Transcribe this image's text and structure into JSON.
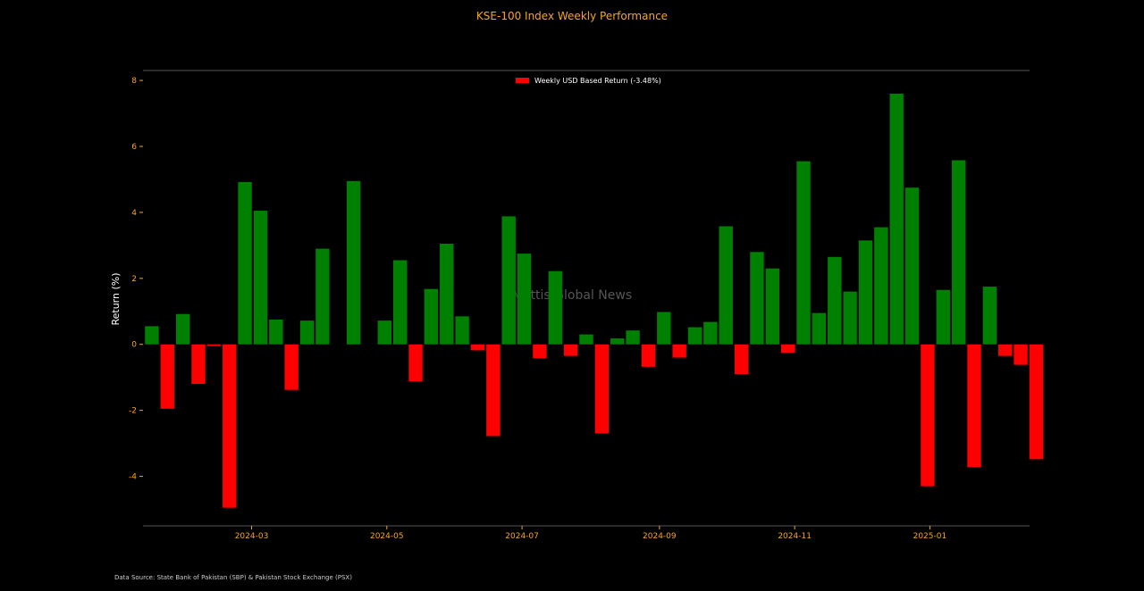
{
  "chart_data": {
    "type": "bar",
    "title": "KSE-100 Index Weekly Performance",
    "ylabel": "Return (%)",
    "ylim": [
      -5.5,
      8.3
    ],
    "yticks": [
      -4,
      -2,
      0,
      2,
      4,
      6,
      8
    ],
    "x_range": [
      "2024-01-12",
      "2025-02-15"
    ],
    "xticks": [
      {
        "date": "2024-03-01",
        "label": "2024-03"
      },
      {
        "date": "2024-05-01",
        "label": "2024-05"
      },
      {
        "date": "2024-07-01",
        "label": "2024-07"
      },
      {
        "date": "2024-09-01",
        "label": "2024-09"
      },
      {
        "date": "2024-11-01",
        "label": "2024-11"
      },
      {
        "date": "2025-01-01",
        "label": "2025-01"
      }
    ],
    "positive_color": "#008000",
    "negative_color": "#ff0000",
    "legend": {
      "label": "Weekly USD Based Return (-3.48%)",
      "color": "#ff0000",
      "position": "top-center"
    },
    "watermark": "Mettis Global News",
    "source_note": "Data Source: State Bank of Pakistan (SBP) & Pakistan Stock Exchange (PSX)",
    "series": [
      {
        "values": [
          {
            "x": "2024-01-16",
            "y": 0.55
          },
          {
            "x": "2024-01-23",
            "y": -1.95
          },
          {
            "x": "2024-01-30",
            "y": 0.92
          },
          {
            "x": "2024-02-06",
            "y": -1.2
          },
          {
            "x": "2024-02-13",
            "y": -0.05
          },
          {
            "x": "2024-02-20",
            "y": -4.95
          },
          {
            "x": "2024-02-27",
            "y": 4.92
          },
          {
            "x": "2024-03-05",
            "y": 4.05
          },
          {
            "x": "2024-03-12",
            "y": 0.75
          },
          {
            "x": "2024-03-19",
            "y": -1.38
          },
          {
            "x": "2024-03-26",
            "y": 0.72
          },
          {
            "x": "2024-04-02",
            "y": 2.9
          },
          {
            "x": "2024-04-16",
            "y": 4.95
          },
          {
            "x": "2024-04-30",
            "y": 0.72
          },
          {
            "x": "2024-05-07",
            "y": 2.55
          },
          {
            "x": "2024-05-14",
            "y": -1.12
          },
          {
            "x": "2024-05-21",
            "y": 1.68
          },
          {
            "x": "2024-05-28",
            "y": 3.05
          },
          {
            "x": "2024-06-04",
            "y": 0.85
          },
          {
            "x": "2024-06-11",
            "y": -0.18
          },
          {
            "x": "2024-06-18",
            "y": -2.78
          },
          {
            "x": "2024-06-25",
            "y": 3.88
          },
          {
            "x": "2024-07-02",
            "y": 2.75
          },
          {
            "x": "2024-07-09",
            "y": -0.42
          },
          {
            "x": "2024-07-16",
            "y": 2.22
          },
          {
            "x": "2024-07-23",
            "y": -0.35
          },
          {
            "x": "2024-07-30",
            "y": 0.3
          },
          {
            "x": "2024-08-06",
            "y": -2.7
          },
          {
            "x": "2024-08-13",
            "y": 0.18
          },
          {
            "x": "2024-08-20",
            "y": 0.42
          },
          {
            "x": "2024-08-27",
            "y": -0.68
          },
          {
            "x": "2024-09-03",
            "y": 0.98
          },
          {
            "x": "2024-09-10",
            "y": -0.4
          },
          {
            "x": "2024-09-17",
            "y": 0.52
          },
          {
            "x": "2024-09-24",
            "y": 0.68
          },
          {
            "x": "2024-10-01",
            "y": 3.58
          },
          {
            "x": "2024-10-08",
            "y": -0.9
          },
          {
            "x": "2024-10-15",
            "y": 2.8
          },
          {
            "x": "2024-10-22",
            "y": 2.3
          },
          {
            "x": "2024-10-29",
            "y": -0.25
          },
          {
            "x": "2024-11-05",
            "y": 5.55
          },
          {
            "x": "2024-11-12",
            "y": 0.95
          },
          {
            "x": "2024-11-19",
            "y": 2.65
          },
          {
            "x": "2024-11-26",
            "y": 1.6
          },
          {
            "x": "2024-12-03",
            "y": 3.15
          },
          {
            "x": "2024-12-10",
            "y": 3.55
          },
          {
            "x": "2024-12-17",
            "y": 7.6
          },
          {
            "x": "2024-12-24",
            "y": 4.75
          },
          {
            "x": "2024-12-31",
            "y": -4.3
          },
          {
            "x": "2025-01-07",
            "y": 1.65
          },
          {
            "x": "2025-01-14",
            "y": 5.58
          },
          {
            "x": "2025-01-21",
            "y": -3.72
          },
          {
            "x": "2025-01-28",
            "y": 1.75
          },
          {
            "x": "2025-02-04",
            "y": -0.35
          },
          {
            "x": "2025-02-11",
            "y": -0.62
          },
          {
            "x": "2025-02-18",
            "y": -3.48
          }
        ]
      }
    ]
  }
}
